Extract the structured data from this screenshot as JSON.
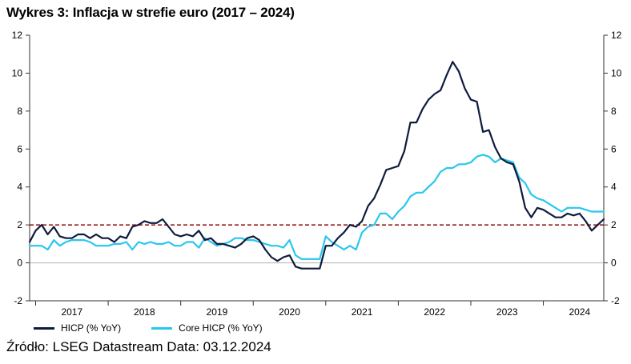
{
  "title": "Wykres 3: Inflacja w strefie euro (2017 – 2024)",
  "source": "Źródło: LSEG Datastream Data: 03.12.2024",
  "colors": {
    "hicp": "#0e1b3d",
    "core": "#29c6f0",
    "threshold": "#9b1c1c",
    "axis": "#333333",
    "zero": "#b0b0b0"
  },
  "chart_data": {
    "type": "line",
    "title": "Wykres 3: Inflacja w strefie euro (2017 – 2024)",
    "xlabel": "",
    "ylabel": "",
    "ylim": [
      -2,
      12
    ],
    "yticks": [
      -2,
      0,
      2,
      4,
      6,
      8,
      10,
      12
    ],
    "ytick_labels": [
      "-2",
      "0",
      "2",
      "4",
      "6",
      "8",
      "10",
      "12"
    ],
    "x_start": 2016.917,
    "x_end": 2024.833,
    "year_labels": [
      "2017",
      "2018",
      "2019",
      "2020",
      "2021",
      "2022",
      "2023",
      "2024"
    ],
    "year_centers": [
      2017.5,
      2018.5,
      2019.5,
      2020.5,
      2021.5,
      2022.5,
      2023.5,
      2024.5
    ],
    "threshold": 2,
    "grid": false,
    "legend_position": "bottom-left",
    "series": [
      {
        "name": "HICP (% YoY)",
        "x_start": 2016.917,
        "step": 0.08333,
        "values": [
          1.1,
          1.7,
          2.0,
          1.5,
          1.9,
          1.4,
          1.3,
          1.3,
          1.5,
          1.5,
          1.3,
          1.5,
          1.3,
          1.3,
          1.1,
          1.4,
          1.3,
          1.9,
          2.0,
          2.2,
          2.1,
          2.1,
          2.3,
          1.9,
          1.5,
          1.4,
          1.5,
          1.4,
          1.7,
          1.2,
          1.3,
          1.0,
          1.0,
          0.9,
          0.8,
          1.0,
          1.3,
          1.4,
          1.2,
          0.7,
          0.3,
          0.1,
          0.3,
          0.4,
          -0.2,
          -0.3,
          -0.3,
          -0.3,
          -0.3,
          0.9,
          0.9,
          1.3,
          1.6,
          2.0,
          1.9,
          2.2,
          3.0,
          3.4,
          4.1,
          4.9,
          5.0,
          5.1,
          5.9,
          7.4,
          7.4,
          8.1,
          8.6,
          8.9,
          9.1,
          9.9,
          10.6,
          10.1,
          9.2,
          8.6,
          8.5,
          6.9,
          7.0,
          6.1,
          5.5,
          5.3,
          5.2,
          4.3,
          2.9,
          2.4,
          2.9,
          2.8,
          2.6,
          2.4,
          2.4,
          2.6,
          2.5,
          2.6,
          2.2,
          1.7,
          2.0,
          2.3
        ]
      },
      {
        "name": "Core HICP (% YoY)",
        "x_start": 2016.917,
        "step": 0.08333,
        "values": [
          0.9,
          0.9,
          0.9,
          0.7,
          1.2,
          0.9,
          1.1,
          1.2,
          1.2,
          1.2,
          1.1,
          0.9,
          0.9,
          0.9,
          1.0,
          1.0,
          1.1,
          0.7,
          1.1,
          1.0,
          1.1,
          1.0,
          1.0,
          1.1,
          0.9,
          0.9,
          1.1,
          1.1,
          0.8,
          1.3,
          1.1,
          0.9,
          1.0,
          1.1,
          1.3,
          1.3,
          1.2,
          1.2,
          1.1,
          1.0,
          0.9,
          0.9,
          0.8,
          1.2,
          0.4,
          0.2,
          0.2,
          0.2,
          0.2,
          1.4,
          1.1,
          0.9,
          0.7,
          0.9,
          0.7,
          1.6,
          1.9,
          2.0,
          2.6,
          2.6,
          2.3,
          2.7,
          3.0,
          3.5,
          3.7,
          3.7,
          4.0,
          4.3,
          4.8,
          5.0,
          5.0,
          5.2,
          5.2,
          5.3,
          5.6,
          5.7,
          5.6,
          5.3,
          5.5,
          5.4,
          5.3,
          4.5,
          4.2,
          3.6,
          3.4,
          3.3,
          3.1,
          2.9,
          2.7,
          2.9,
          2.9,
          2.9,
          2.8,
          2.7,
          2.7,
          2.7
        ]
      }
    ]
  }
}
